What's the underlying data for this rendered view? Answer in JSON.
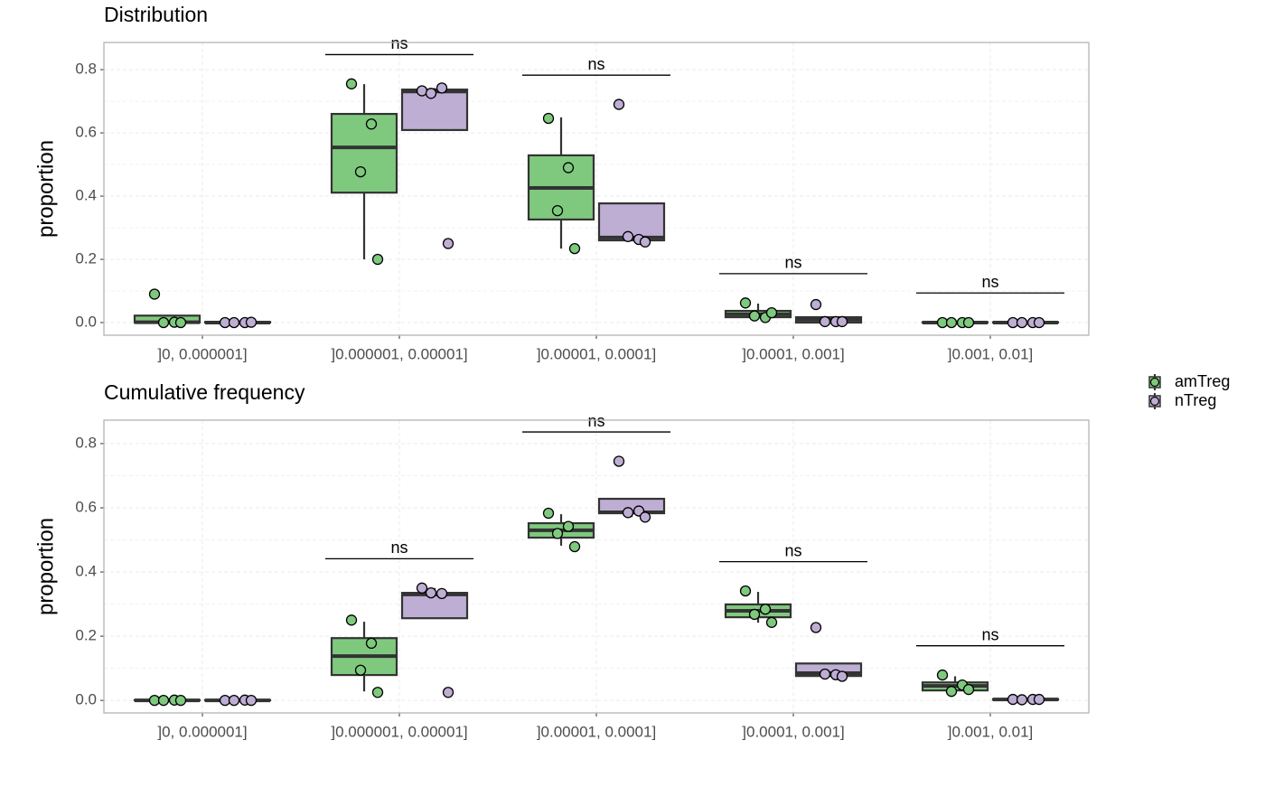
{
  "legend": {
    "items": [
      {
        "name": "amTreg",
        "color": "#7fc97f"
      },
      {
        "name": "nTreg",
        "color": "#beaed4"
      }
    ]
  },
  "chart_data": [
    {
      "type": "box",
      "title": "Distribution",
      "y_label": "proportion",
      "categories": [
        "]0, 0.000001]",
        "]0.000001, 0.00001]",
        "]0.00001, 0.0001]",
        "]0.0001, 0.001]",
        "]0.001, 0.01]"
      ],
      "ylim": [
        -0.04,
        0.886
      ],
      "yticks": [
        {
          "value": 0,
          "label": "0.0"
        },
        {
          "value": 0.2,
          "label": "0.2"
        },
        {
          "value": 0.4,
          "label": "0.4"
        },
        {
          "value": 0.6,
          "label": "0.6"
        },
        {
          "value": 0.8,
          "label": "0.8"
        }
      ],
      "grid": true,
      "series": [
        {
          "color": "#7fc97f",
          "boxes": [
            {
              "low": 0,
              "q1": 0,
              "median": 0.001,
              "q3": 0.022,
              "high": 0.022
            },
            {
              "low": 0.2,
              "q1": 0.411,
              "median": 0.554,
              "q3": 0.66,
              "high": 0.754
            },
            {
              "low": 0.234,
              "q1": 0.326,
              "median": 0.426,
              "q3": 0.529,
              "high": 0.649
            },
            {
              "low": 0.017,
              "q1": 0.017,
              "median": 0.026,
              "q3": 0.037,
              "high": 0.06
            },
            {
              "low": 0,
              "q1": 0,
              "median": 0,
              "q3": 0.001,
              "high": 0.001
            }
          ],
          "points": [
            [
              0.09,
              0.001,
              0,
              0
            ],
            [
              0.755,
              0.628,
              0.477,
              0.2
            ],
            [
              0.646,
              0.49,
              0.354,
              0.234
            ],
            [
              0.062,
              0.016,
              0.021,
              0.031
            ],
            [
              0,
              0,
              0,
              0
            ]
          ]
        },
        {
          "color": "#beaed4",
          "boxes": [
            {
              "low": 0,
              "q1": 0,
              "median": 0,
              "q3": 0.002,
              "high": 0.002
            },
            {
              "low": 0.609,
              "q1": 0.609,
              "median": 0.731,
              "q3": 0.737,
              "high": 0.742
            },
            {
              "low": 0.26,
              "q1": 0.26,
              "median": 0.269,
              "q3": 0.377,
              "high": 0.377
            },
            {
              "low": 0,
              "q1": 0,
              "median": 0.009,
              "q3": 0.017,
              "high": 0.017
            },
            {
              "low": 0,
              "q1": 0,
              "median": 0,
              "q3": 0.001,
              "high": 0.001
            }
          ],
          "points": [
            [
              0,
              0,
              0,
              0.001
            ],
            [
              0.733,
              0.742,
              0.725,
              0.25
            ],
            [
              0.69,
              0.263,
              0.272,
              0.255
            ],
            [
              0.057,
              0.003,
              0.003,
              0.003
            ],
            [
              0,
              0,
              0,
              0
            ]
          ]
        }
      ],
      "annotations": [
        {
          "category": 1,
          "text": "ns"
        },
        {
          "category": 2,
          "text": "ns"
        },
        {
          "category": 3,
          "text": "ns"
        },
        {
          "category": 4,
          "text": "ns"
        }
      ]
    },
    {
      "type": "box",
      "title": "Cumulative frequency",
      "y_label": "proportion",
      "categories": [
        "]0, 0.000001]",
        "]0.000001, 0.00001]",
        "]0.00001, 0.0001]",
        "]0.0001, 0.001]",
        "]0.001, 0.01]"
      ],
      "ylim": [
        -0.039,
        0.873
      ],
      "yticks": [
        {
          "value": 0,
          "label": "0.0"
        },
        {
          "value": 0.2,
          "label": "0.2"
        },
        {
          "value": 0.4,
          "label": "0.4"
        },
        {
          "value": 0.6,
          "label": "0.6"
        },
        {
          "value": 0.8,
          "label": "0.8"
        }
      ],
      "grid": true,
      "series": [
        {
          "color": "#7fc97f",
          "boxes": [
            {
              "low": 0,
              "q1": 0,
              "median": 0,
              "q3": 0.001,
              "high": 0.001
            },
            {
              "low": 0.028,
              "q1": 0.079,
              "median": 0.138,
              "q3": 0.194,
              "high": 0.245
            },
            {
              "low": 0.482,
              "q1": 0.507,
              "median": 0.53,
              "q3": 0.552,
              "high": 0.58
            },
            {
              "low": 0.242,
              "q1": 0.259,
              "median": 0.279,
              "q3": 0.299,
              "high": 0.338
            },
            {
              "low": 0.028,
              "q1": 0.031,
              "median": 0.045,
              "q3": 0.056,
              "high": 0.075
            }
          ],
          "points": [
            [
              0,
              0.001,
              0,
              0
            ],
            [
              0.25,
              0.178,
              0.094,
              0.025
            ],
            [
              0.583,
              0.542,
              0.52,
              0.479
            ],
            [
              0.341,
              0.284,
              0.268,
              0.243
            ],
            [
              0.079,
              0.048,
              0.028,
              0.034
            ]
          ]
        },
        {
          "color": "#beaed4",
          "boxes": [
            {
              "low": 0,
              "q1": 0,
              "median": 0,
              "q3": 0.001,
              "high": 0.001
            },
            {
              "low": 0.256,
              "q1": 0.256,
              "median": 0.33,
              "q3": 0.335,
              "high": 0.35
            },
            {
              "low": 0.571,
              "q1": 0.583,
              "median": 0.586,
              "q3": 0.628,
              "high": 0.628
            },
            {
              "low": 0.075,
              "q1": 0.076,
              "median": 0.085,
              "q3": 0.115,
              "high": 0.115
            },
            {
              "low": 0.002,
              "q1": 0.002,
              "median": 0.003,
              "q3": 0.004,
              "high": 0.004
            }
          ],
          "points": [
            [
              0,
              0.001,
              0,
              0
            ],
            [
              0.35,
              0.333,
              0.335,
              0.025
            ],
            [
              0.745,
              0.59,
              0.585,
              0.571
            ],
            [
              0.227,
              0.08,
              0.082,
              0.075
            ],
            [
              0.003,
              0.003,
              0.002,
              0.003
            ]
          ]
        }
      ],
      "annotations": [
        {
          "category": 1,
          "text": "ns"
        },
        {
          "category": 2,
          "text": "ns"
        },
        {
          "category": 3,
          "text": "ns"
        },
        {
          "category": 4,
          "text": "ns"
        }
      ]
    }
  ]
}
